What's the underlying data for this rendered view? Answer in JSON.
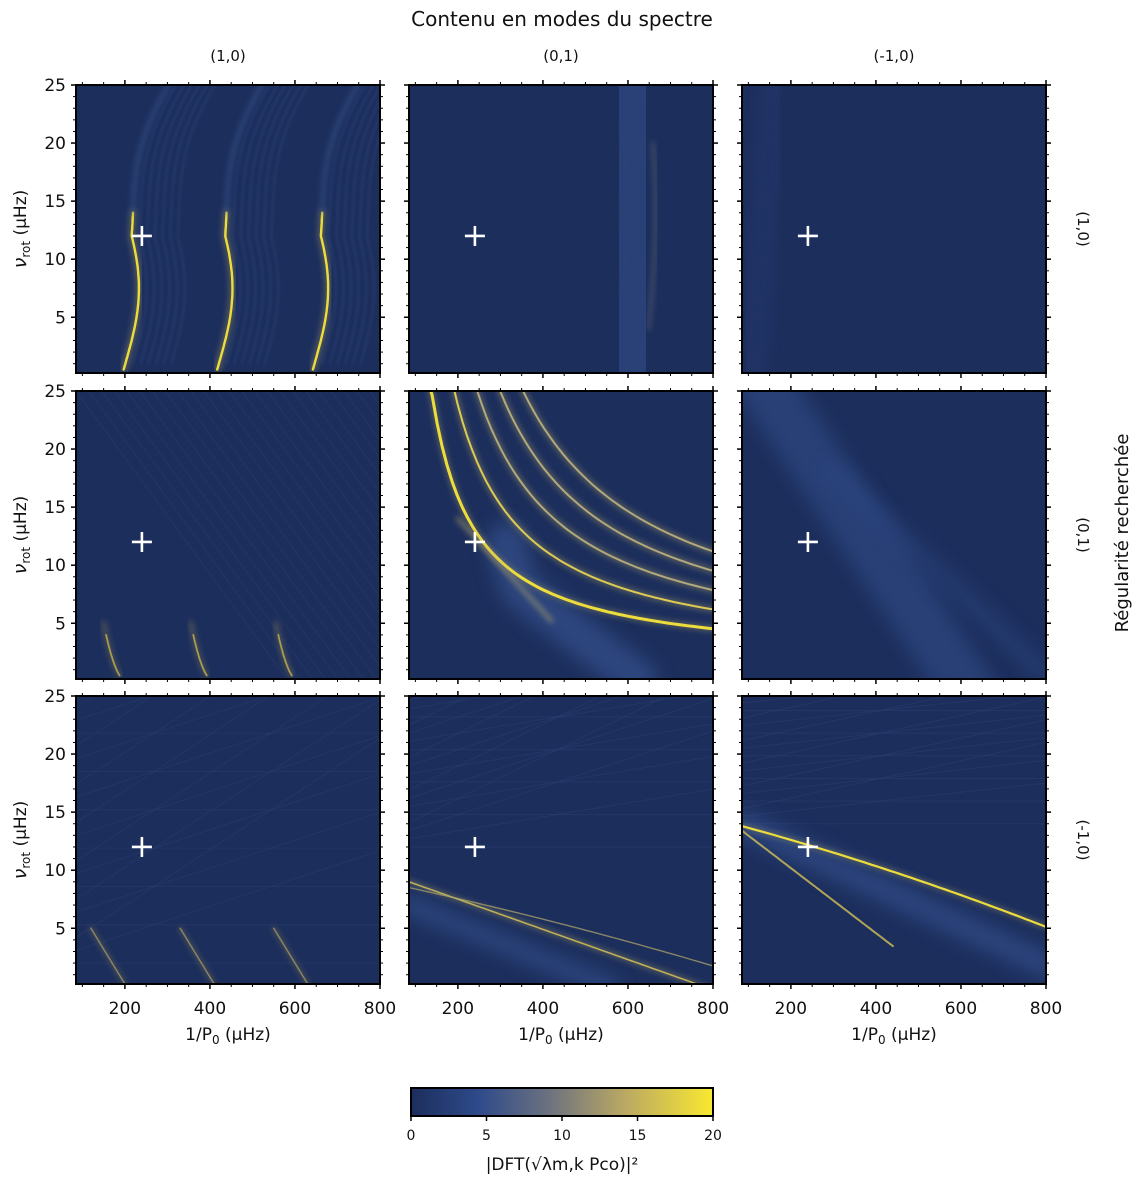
{
  "figure": {
    "title": "Contenu en modes du spectre",
    "column_titles": [
      "(1,0)",
      "(0,1)",
      "(-1,0)"
    ],
    "row_titles": [
      "(1,0)",
      "(0,1)",
      "(-1,0)"
    ],
    "right_label": "Régularité recherchée",
    "xlabel_main": "1/P",
    "xlabel_sub": "0",
    "xlabel_unit": " (μHz)",
    "ylabel_main": "ν",
    "ylabel_sub": "rot",
    "ylabel_unit": " (μHz)",
    "x_ticks": [
      "200",
      "400",
      "600",
      "800"
    ],
    "y_ticks": [
      "5",
      "10",
      "15",
      "20",
      "25"
    ],
    "colorbar_ticks": [
      "0",
      "5",
      "10",
      "15",
      "20"
    ],
    "colorbar_label": "|DFT(√λm,k Pco)|²"
  },
  "chart_data": {
    "type": "heatmap",
    "title": "Contenu en modes du spectre",
    "xlim": [
      85,
      800
    ],
    "ylim": [
      0.2,
      25
    ],
    "colorbar": {
      "range": [
        0,
        20
      ],
      "colormap": "cividis"
    },
    "colors": {
      "background": "#1c2e5c",
      "peak": "#f7e53a",
      "marker": "#ffffff"
    },
    "marker": {
      "x": 240,
      "y": 12,
      "symbol": "+"
    },
    "panels": [
      {
        "column": "(1,0)",
        "row": "(1,0)",
        "description": "Trois crêtes en S (m=1), émergeant à 1/P0 ≈ 200, 400, 600 μHz et remontant vers ν_rot élevé"
      },
      {
        "column": "(0,1)",
        "row": "(1,0)",
        "description": "Bande diffuse large centrée vers 1/P0 ≈ 600 μHz"
      },
      {
        "column": "(-1,0)",
        "row": "(1,0)",
        "description": "Faible signal, quasi uniforme"
      },
      {
        "column": "(1,0)",
        "row": "(0,1)",
        "description": "Faibles crêtes près de ν_rot ≈ 0–5 μHz à 1/P0 ≈ 200, 400, 600 μHz"
      },
      {
        "column": "(0,1)",
        "row": "(0,1)",
        "description": "Famille d'arcs brillants (m=0) décroissants, passant par (240, 12)"
      },
      {
        "column": "(-1,0)",
        "row": "(0,1)",
        "description": "Large bande diffuse décroissante"
      },
      {
        "column": "(1,0)",
        "row": "(-1,0)",
        "description": "Crêtes faibles près de ν_rot ≈ 0–5 μHz"
      },
      {
        "column": "(0,1)",
        "row": "(-1,0)",
        "description": "Crêtes croisées faibles autour de ν_rot ≈ 5–9 μHz"
      },
      {
        "column": "(-1,0)",
        "row": "(-1,0)",
        "description": "Crêtes brillantes (m=-1) croisant en (240, 12)"
      }
    ]
  }
}
